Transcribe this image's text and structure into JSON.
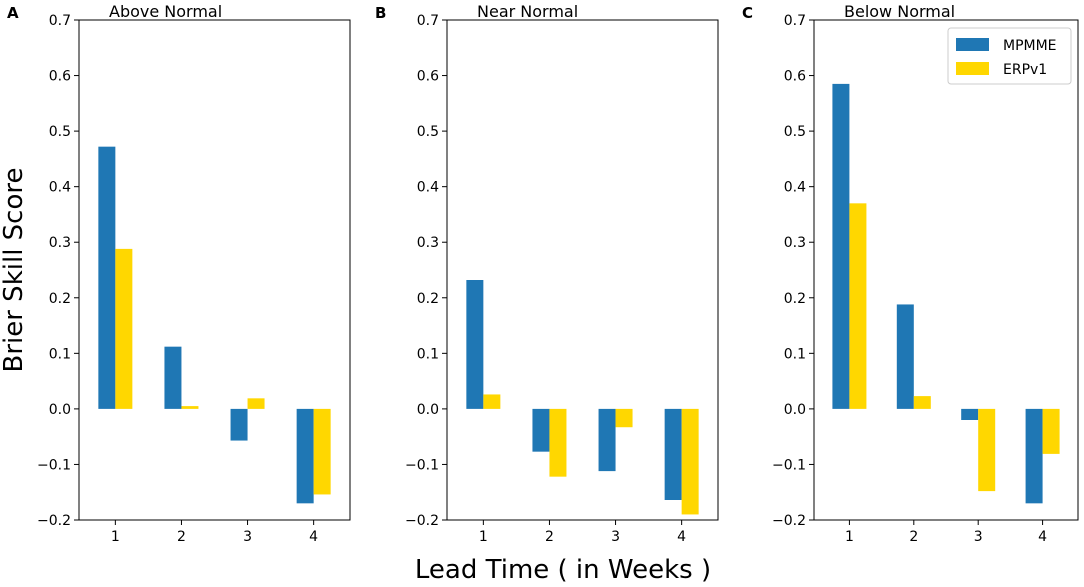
{
  "chart_data": {
    "type": "bar",
    "ylabel": "Brier Skill Score",
    "xlabel": "Lead Time ( in Weeks )",
    "ylim": [
      -0.2,
      0.7
    ],
    "yticks": [
      -0.2,
      -0.1,
      0.0,
      0.1,
      0.2,
      0.3,
      0.4,
      0.5,
      0.6,
      0.7
    ],
    "ytick_labels": [
      "−0.2",
      "−0.1",
      "0.0",
      "0.1",
      "0.2",
      "0.3",
      "0.4",
      "0.5",
      "0.6",
      "0.7"
    ],
    "categories": [
      "1",
      "2",
      "3",
      "4"
    ],
    "legend": {
      "position": "top-right",
      "entries": [
        {
          "name": "MPMME",
          "color": "#1f77b4"
        },
        {
          "name": "ERPv1",
          "color": "#ffd700"
        }
      ]
    },
    "panels": [
      {
        "letter": "A",
        "title": "Above Normal",
        "series": [
          {
            "name": "MPMME",
            "color": "#1f77b4",
            "values": [
              0.472,
              0.112,
              -0.057,
              -0.17
            ]
          },
          {
            "name": "ERPv1",
            "color": "#ffd700",
            "values": [
              0.288,
              0.005,
              0.019,
              -0.154
            ]
          }
        ]
      },
      {
        "letter": "B",
        "title": "Near Normal",
        "series": [
          {
            "name": "MPMME",
            "color": "#1f77b4",
            "values": [
              0.232,
              -0.077,
              -0.112,
              -0.164
            ]
          },
          {
            "name": "ERPv1",
            "color": "#ffd700",
            "values": [
              0.026,
              -0.122,
              -0.033,
              -0.19
            ]
          }
        ]
      },
      {
        "letter": "C",
        "title": "Below Normal",
        "series": [
          {
            "name": "MPMME",
            "color": "#1f77b4",
            "values": [
              0.585,
              0.188,
              -0.02,
              -0.17
            ]
          },
          {
            "name": "ERPv1",
            "color": "#ffd700",
            "values": [
              0.37,
              0.023,
              -0.148,
              -0.081
            ]
          }
        ]
      }
    ]
  }
}
